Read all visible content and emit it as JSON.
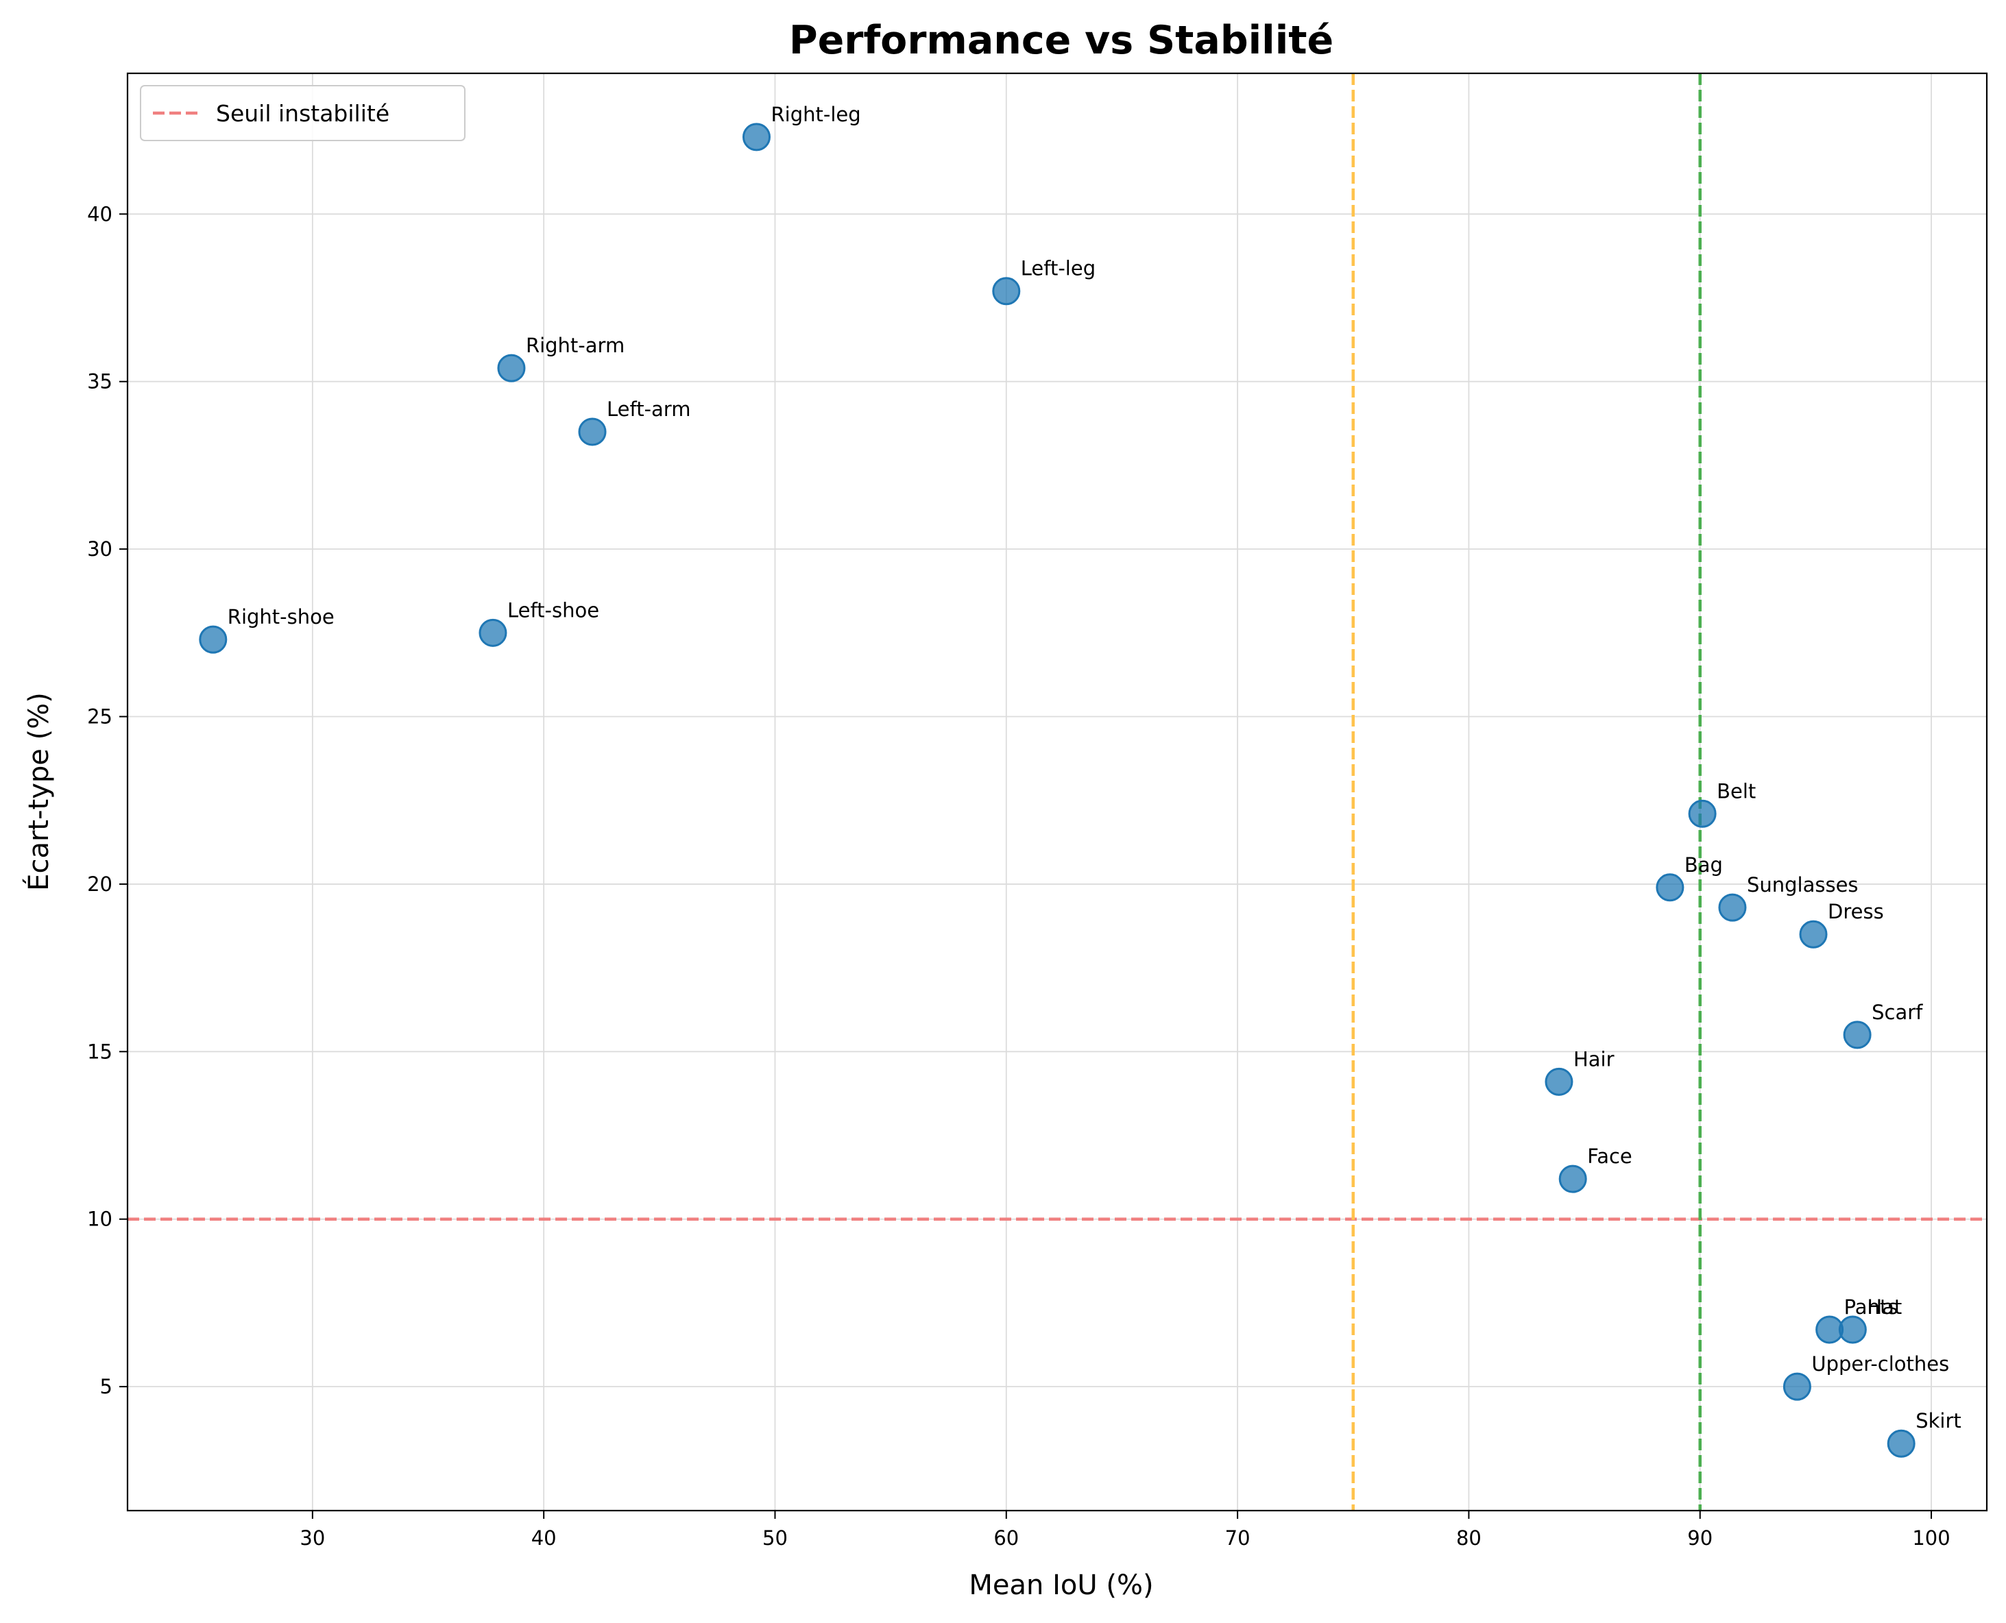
{
  "chart_data": {
    "type": "scatter",
    "title": "Performance vs Stabilité",
    "xlabel": "Mean IoU (%)",
    "ylabel": "Écart-type (%)",
    "xlim": [
      22,
      102.4
    ],
    "ylim": [
      1.3,
      44.2
    ],
    "xticks": [
      30,
      40,
      50,
      60,
      70,
      80,
      90,
      100
    ],
    "yticks": [
      5,
      10,
      15,
      20,
      25,
      30,
      35,
      40
    ],
    "grid": true,
    "legend_position": "top-left",
    "point_color": "#1f77b4",
    "points": [
      {
        "label": "Right-leg",
        "x": 49.2,
        "y": 42.3
      },
      {
        "label": "Left-leg",
        "x": 60.0,
        "y": 37.7
      },
      {
        "label": "Right-arm",
        "x": 38.6,
        "y": 35.4
      },
      {
        "label": "Left-arm",
        "x": 42.1,
        "y": 33.5
      },
      {
        "label": "Right-shoe",
        "x": 25.7,
        "y": 27.3
      },
      {
        "label": "Left-shoe",
        "x": 37.8,
        "y": 27.5
      },
      {
        "label": "Belt",
        "x": 90.1,
        "y": 22.1
      },
      {
        "label": "Bag",
        "x": 88.7,
        "y": 19.9
      },
      {
        "label": "Sunglasses",
        "x": 91.4,
        "y": 19.3
      },
      {
        "label": "Dress",
        "x": 94.9,
        "y": 18.5
      },
      {
        "label": "Scarf",
        "x": 96.8,
        "y": 15.5
      },
      {
        "label": "Hair",
        "x": 83.9,
        "y": 14.1
      },
      {
        "label": "Face",
        "x": 84.5,
        "y": 11.2
      },
      {
        "label": "Pants",
        "x": 95.6,
        "y": 6.7
      },
      {
        "label": "Hat",
        "x": 96.6,
        "y": 6.7
      },
      {
        "label": "Upper-clothes",
        "x": 94.2,
        "y": 5.0
      },
      {
        "label": "Skirt",
        "x": 98.7,
        "y": 3.3
      }
    ],
    "reference_lines": [
      {
        "orientation": "horizontal",
        "value": 10,
        "color": "#f08080",
        "legend": "Seuil instabilité"
      },
      {
        "orientation": "vertical",
        "value": 75,
        "color": "#ffc34d",
        "legend": ""
      },
      {
        "orientation": "vertical",
        "value": 90,
        "color": "#4caf50",
        "legend": ""
      }
    ]
  }
}
